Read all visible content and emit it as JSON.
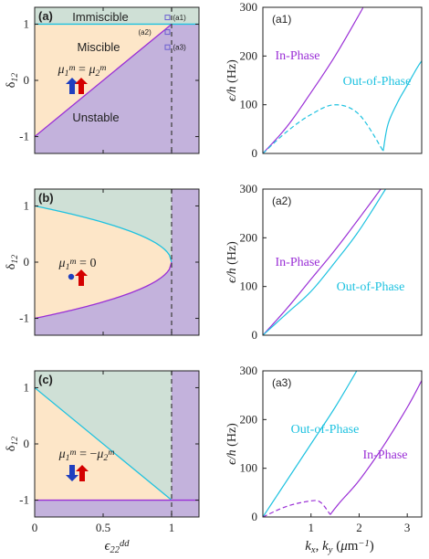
{
  "figure": {
    "colors": {
      "immiscible": "#cfe0d6",
      "miscible": "#fde6c8",
      "unstable": "#c3b2dc",
      "cyan": "#1ec2e0",
      "purple": "#9a2fd6",
      "axis": "#222222",
      "arrow_up": "#d40000",
      "arrow_down": "#1f3fbf",
      "marker": "#6b5fd1"
    }
  },
  "chart_data": [
    {
      "id": "a",
      "type": "area",
      "panel_label": "(a)",
      "xlabel": "",
      "ylabel": "δ12",
      "xlim": [
        0,
        1.2
      ],
      "ylim": [
        -1.3,
        1.3
      ],
      "xticks": [
        0,
        0.5,
        1
      ],
      "yticks": [
        -1,
        0,
        1
      ],
      "dashed_x": 1.0,
      "regions": [
        {
          "name": "Immiscible",
          "label": "Immiscible"
        },
        {
          "name": "Miscible",
          "label": "Miscible"
        },
        {
          "name": "Unstable",
          "label": "Unstable"
        }
      ],
      "boundaries": [
        {
          "color": "cyan",
          "x": [
            0,
            1.2
          ],
          "y": [
            1,
            1
          ]
        },
        {
          "color": "purple",
          "x": [
            0,
            1
          ],
          "y": [
            -1,
            1
          ]
        }
      ],
      "points": [
        {
          "label": "(a1)",
          "x": 0.97,
          "y": 1.12
        },
        {
          "label": "(a2)",
          "x": 0.97,
          "y": 0.86
        },
        {
          "label": "(a3)",
          "x": 0.97,
          "y": 0.59
        }
      ],
      "formula": "μ1m = μ2m",
      "moments": "parallel"
    },
    {
      "id": "b",
      "type": "area",
      "panel_label": "(b)",
      "xlabel": "",
      "ylabel": "δ12",
      "xlim": [
        0,
        1.2
      ],
      "ylim": [
        -1.3,
        1.3
      ],
      "xticks": [
        0,
        0.5,
        1
      ],
      "yticks": [
        -1,
        0,
        1
      ],
      "dashed_x": 1.0,
      "boundaries": [
        {
          "color": "cyan",
          "curve": "δ12 = +sqrt(1 - ε22)"
        },
        {
          "color": "purple",
          "curve": "δ12 = -sqrt(1 - ε22)"
        }
      ],
      "formula": "μ1m = 0",
      "moments": "one-zero"
    },
    {
      "id": "c",
      "type": "area",
      "panel_label": "(c)",
      "xlabel": "ε22dd",
      "ylabel": "δ12",
      "xlim": [
        0,
        1.2
      ],
      "ylim": [
        -1.3,
        1.3
      ],
      "xticks": [
        0,
        0.5,
        1
      ],
      "xtick_labels": [
        "0",
        "0.5",
        "1"
      ],
      "yticks": [
        -1,
        0,
        1
      ],
      "dashed_x": 1.0,
      "boundaries": [
        {
          "color": "cyan",
          "x": [
            0,
            1
          ],
          "y": [
            1,
            -1
          ]
        },
        {
          "color": "purple",
          "x": [
            0,
            1.2
          ],
          "y": [
            -1,
            -1
          ]
        }
      ],
      "formula": "μ1m = −μ2m",
      "moments": "antiparallel"
    },
    {
      "id": "a1",
      "type": "line",
      "panel_label": "(a1)",
      "xlabel": "",
      "ylabel": "ε/h (Hz)",
      "xlim": [
        0,
        3.3
      ],
      "ylim": [
        0,
        300
      ],
      "yticks": [
        0,
        100,
        200,
        300
      ],
      "series": [
        {
          "name": "In-Phase",
          "color": "purple",
          "style": "solid",
          "x": [
            0,
            0.5,
            1.0,
            1.5,
            2.0,
            2.08
          ],
          "y": [
            0,
            55,
            125,
            200,
            285,
            300
          ]
        },
        {
          "name": "Out-of-Phase",
          "color": "cyan",
          "style": "dashed",
          "x": [
            0,
            0.5,
            1.0,
            1.5,
            2.0,
            2.5
          ],
          "y": [
            0,
            45,
            80,
            100,
            80,
            5
          ]
        },
        {
          "name": "Out-of-Phase",
          "color": "cyan",
          "style": "solid",
          "x": [
            2.5,
            2.6,
            2.8,
            3.0,
            3.2,
            3.3
          ],
          "y": [
            5,
            60,
            105,
            140,
            175,
            190
          ]
        }
      ]
    },
    {
      "id": "a2",
      "type": "line",
      "panel_label": "(a2)",
      "xlabel": "",
      "ylabel": "ε/h (Hz)",
      "xlim": [
        0,
        3.3
      ],
      "ylim": [
        0,
        300
      ],
      "yticks": [
        0,
        100,
        200,
        300
      ],
      "series": [
        {
          "name": "In-Phase",
          "color": "purple",
          "style": "solid",
          "x": [
            0,
            0.5,
            1.0,
            1.5,
            2.0,
            2.45
          ],
          "y": [
            0,
            55,
            115,
            175,
            240,
            300
          ]
        },
        {
          "name": "Out-of-Phase",
          "color": "cyan",
          "style": "solid",
          "x": [
            0,
            0.5,
            1.0,
            1.5,
            2.0,
            2.55
          ],
          "y": [
            0,
            45,
            90,
            150,
            215,
            300
          ]
        }
      ]
    },
    {
      "id": "a3",
      "type": "line",
      "panel_label": "(a3)",
      "xlabel": "kx, ky (μm−1)",
      "ylabel": "ε/h (Hz)",
      "xlim": [
        0,
        3.3
      ],
      "ylim": [
        0,
        300
      ],
      "xticks": [
        1,
        2,
        3
      ],
      "xtick_labels": [
        "1",
        "2",
        "3"
      ],
      "yticks": [
        0,
        100,
        200,
        300
      ],
      "series": [
        {
          "name": "Out-of-Phase",
          "color": "cyan",
          "style": "solid",
          "x": [
            0,
            0.5,
            1.0,
            1.5,
            1.95
          ],
          "y": [
            0,
            75,
            150,
            225,
            300
          ]
        },
        {
          "name": "In-Phase",
          "color": "purple",
          "style": "dashed",
          "x": [
            0,
            0.5,
            1.0,
            1.2,
            1.4
          ],
          "y": [
            0,
            22,
            33,
            30,
            5
          ]
        },
        {
          "name": "In-Phase",
          "color": "purple",
          "style": "solid",
          "x": [
            1.4,
            1.6,
            2.0,
            2.5,
            3.0,
            3.3
          ],
          "y": [
            5,
            30,
            75,
            145,
            225,
            280
          ]
        }
      ]
    }
  ]
}
